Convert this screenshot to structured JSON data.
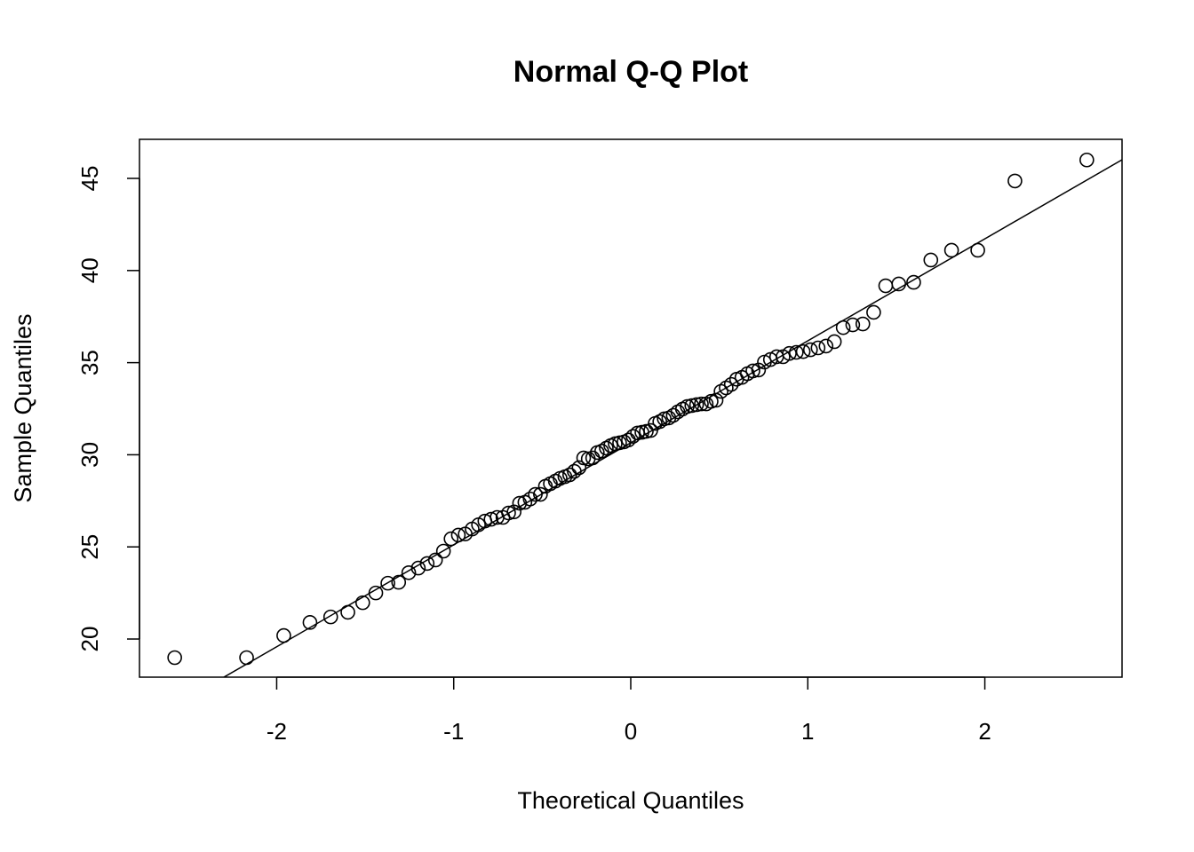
{
  "chart_data": {
    "type": "scatter",
    "title": "Normal Q-Q Plot",
    "xlabel": "Theoretical Quantiles",
    "ylabel": "Sample Quantiles",
    "xlim": [
      -2.775,
      2.775
    ],
    "ylim": [
      17.93,
      47.12
    ],
    "xticks": [
      -2,
      -1,
      0,
      1,
      2
    ],
    "yticks": [
      20,
      25,
      30,
      35,
      40,
      45
    ],
    "grid": false,
    "marker": "open-circle",
    "color": "#000000",
    "reference_line": {
      "intercept": 30.65,
      "slope": 5.535
    },
    "x": [
      -2.576,
      -2.17,
      -1.96,
      -1.812,
      -1.695,
      -1.598,
      -1.514,
      -1.44,
      -1.372,
      -1.311,
      -1.254,
      -1.2,
      -1.15,
      -1.103,
      -1.058,
      -1.015,
      -0.974,
      -0.935,
      -0.896,
      -0.86,
      -0.824,
      -0.789,
      -0.755,
      -0.722,
      -0.69,
      -0.659,
      -0.628,
      -0.598,
      -0.568,
      -0.539,
      -0.51,
      -0.482,
      -0.454,
      -0.426,
      -0.399,
      -0.372,
      -0.345,
      -0.319,
      -0.292,
      -0.266,
      -0.24,
      -0.215,
      -0.189,
      -0.164,
      -0.138,
      -0.113,
      -0.088,
      -0.063,
      -0.038,
      -0.013,
      0.013,
      0.038,
      0.063,
      0.088,
      0.113,
      0.138,
      0.164,
      0.189,
      0.215,
      0.24,
      0.266,
      0.292,
      0.319,
      0.345,
      0.372,
      0.399,
      0.426,
      0.454,
      0.482,
      0.51,
      0.539,
      0.568,
      0.598,
      0.628,
      0.659,
      0.69,
      0.722,
      0.755,
      0.789,
      0.824,
      0.86,
      0.896,
      0.935,
      0.974,
      1.015,
      1.058,
      1.103,
      1.15,
      1.2,
      1.254,
      1.311,
      1.372,
      1.44,
      1.514,
      1.598,
      1.695,
      1.812,
      1.96,
      2.17,
      2.576
    ],
    "y": [
      18.99,
      18.99,
      20.19,
      20.9,
      21.2,
      21.45,
      21.97,
      22.5,
      23.03,
      23.08,
      23.6,
      23.85,
      24.1,
      24.29,
      24.77,
      25.44,
      25.64,
      25.7,
      25.97,
      26.2,
      26.4,
      26.5,
      26.6,
      26.6,
      26.84,
      26.9,
      27.37,
      27.42,
      27.6,
      27.85,
      27.85,
      28.29,
      28.43,
      28.57,
      28.72,
      28.81,
      28.91,
      29.1,
      29.3,
      29.83,
      29.78,
      29.83,
      30.12,
      30.2,
      30.36,
      30.5,
      30.6,
      30.65,
      30.7,
      30.8,
      31.0,
      31.18,
      31.22,
      31.27,
      31.32,
      31.7,
      31.8,
      31.95,
      32.0,
      32.14,
      32.33,
      32.48,
      32.62,
      32.67,
      32.72,
      32.76,
      32.76,
      32.9,
      32.96,
      33.44,
      33.63,
      33.82,
      34.1,
      34.2,
      34.4,
      34.55,
      34.6,
      35.03,
      35.17,
      35.32,
      35.32,
      35.5,
      35.56,
      35.6,
      35.7,
      35.8,
      35.9,
      36.14,
      36.9,
      37.05,
      37.1,
      37.73,
      39.17,
      39.27,
      39.36,
      40.57,
      41.1,
      41.1,
      44.86,
      46.0
    ]
  }
}
